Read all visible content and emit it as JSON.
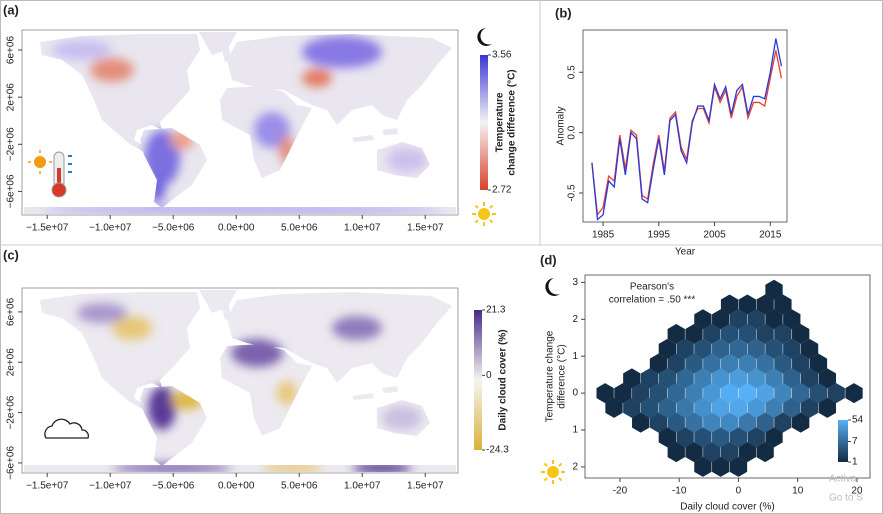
{
  "chart_data": [
    {
      "type": "map",
      "label": "(a)",
      "xlim": [
        -17000000,
        17600000
      ],
      "ylim": [
        -8000000,
        7700000
      ],
      "xticks": [
        {
          "value": -15000000,
          "label": "−1.5e+07"
        },
        {
          "value": -10000000,
          "label": "−1.0e+07"
        },
        {
          "value": -5000000,
          "label": "−5.0e+06"
        },
        {
          "value": 0,
          "label": "0.0e+00"
        },
        {
          "value": 5000000,
          "label": "5.0e+06"
        },
        {
          "value": 10000000,
          "label": "1.0e+07"
        },
        {
          "value": 15000000,
          "label": "1.5e+07"
        }
      ],
      "yticks": [
        {
          "value": 6000000,
          "label": "6e+06"
        },
        {
          "value": 2000000,
          "label": "2e+06"
        },
        {
          "value": -2000000,
          "label": "−2e+06"
        },
        {
          "value": -6000000,
          "label": "−6e+06"
        }
      ],
      "colorbar": {
        "title": [
          "Temperature",
          "change difference (°C)"
        ],
        "clim": [
          -2.72,
          3.56
        ],
        "ticks": [
          3.56,
          {
            "value": -2.72,
            "label": "2.72"
          }
        ],
        "colors": [
          "#d8402a",
          "#f5f3f5",
          "#3b36d6"
        ]
      }
    },
    {
      "type": "line",
      "label": "(b)",
      "xlabel": "Year",
      "ylabel": "Anomaly",
      "xlim": [
        1981.4,
        2018
      ],
      "ylim": [
        -0.74,
        0.85
      ],
      "xticks": [
        1985,
        1995,
        2005,
        2015
      ],
      "yticks": [
        -0.5,
        {
          "value": 0,
          "label": "0.0"
        },
        0.5
      ],
      "x": [
        1983,
        1984,
        1985,
        1986,
        1987,
        1988,
        1989,
        1990,
        1991,
        1992,
        1993,
        1994,
        1995,
        1996,
        1997,
        1998,
        1999,
        2000,
        2001,
        2002,
        2003,
        2004,
        2005,
        2006,
        2007,
        2008,
        2009,
        2010,
        2011,
        2012,
        2013,
        2014,
        2015,
        2016,
        2017
      ],
      "series": [
        {
          "color": "#e8402a",
          "values": [
            -0.25,
            -0.68,
            -0.62,
            -0.36,
            -0.4,
            -0.02,
            -0.3,
            0.02,
            -0.02,
            -0.52,
            -0.55,
            -0.26,
            -0.02,
            -0.32,
            0.12,
            0.17,
            -0.12,
            -0.22,
            0.1,
            0.2,
            0.2,
            0.08,
            0.38,
            0.25,
            0.35,
            0.12,
            0.3,
            0.38,
            0.12,
            0.25,
            0.25,
            0.22,
            0.45,
            0.68,
            0.45
          ]
        },
        {
          "color": "#2a3ad8",
          "values": [
            -0.25,
            -0.72,
            -0.68,
            -0.4,
            -0.45,
            -0.05,
            -0.35,
            0.0,
            -0.05,
            -0.55,
            -0.58,
            -0.3,
            -0.05,
            -0.35,
            0.1,
            0.15,
            -0.15,
            -0.25,
            0.08,
            0.22,
            0.22,
            0.1,
            0.4,
            0.28,
            0.38,
            0.15,
            0.35,
            0.4,
            0.15,
            0.3,
            0.3,
            0.28,
            0.5,
            0.78,
            0.55
          ]
        }
      ]
    },
    {
      "type": "map",
      "label": "(c)",
      "xlim": [
        -17000000,
        17600000
      ],
      "ylim": [
        -6800000,
        7900000
      ],
      "xticks": [
        {
          "value": -15000000,
          "label": "−1.5e+07"
        },
        {
          "value": -10000000,
          "label": "−1.0e+07"
        },
        {
          "value": -5000000,
          "label": "−5.0e+06"
        },
        {
          "value": 0,
          "label": "0.0e+00"
        },
        {
          "value": 5000000,
          "label": "5.0e+06"
        },
        {
          "value": 10000000,
          "label": "1.0e+07"
        },
        {
          "value": 15000000,
          "label": "1.5e+07"
        }
      ],
      "yticks": [
        {
          "value": 6000000,
          "label": "6e+06"
        },
        {
          "value": 2000000,
          "label": "2e+06"
        },
        {
          "value": -2000000,
          "label": "−2e+06"
        },
        {
          "value": -6000000,
          "label": "−6e+06"
        }
      ],
      "colorbar": {
        "title": [
          "Daily cloud cover (%)"
        ],
        "clim": [
          -24.3,
          21.3
        ],
        "ticks": [
          21.3,
          0,
          -24.3
        ],
        "colors": [
          "#d9b13b",
          "#f6f4f0",
          "#4a2a88"
        ]
      }
    },
    {
      "type": "hexbin",
      "label": "(d)",
      "xlabel": "Daily cloud cover (%)",
      "ylabel": [
        "Temperature change",
        "difference (°C)"
      ],
      "annotation": [
        "Pearson's",
        "correlation = .50 ***"
      ],
      "xlim": [
        -25.9,
        22.2
      ],
      "ylim": [
        -2.3,
        3.2
      ],
      "xticks": [
        -20,
        -10,
        0,
        10,
        20
      ],
      "yticks": [
        3,
        2,
        1,
        0,
        {
          "value": -1,
          "label": "1"
        },
        {
          "value": -2,
          "label": "2"
        }
      ],
      "x": [
        6,
        -1.5,
        1.5,
        4.5,
        7.5,
        -6,
        -3,
        0,
        3,
        6,
        9,
        -10.5,
        -7.5,
        -4.5,
        -1.5,
        1.5,
        4.5,
        7.5,
        10.5,
        -12,
        -9,
        -6,
        -3,
        0,
        3,
        6,
        9,
        12,
        -13.5,
        -10.5,
        -7.5,
        -4.5,
        -1.5,
        1.5,
        4.5,
        7.5,
        10.5,
        13.5,
        -18,
        -15,
        -12,
        -9,
        -6,
        -3,
        0,
        3,
        6,
        9,
        12,
        15,
        -22.5,
        -19.5,
        -16.5,
        -13.5,
        -10.5,
        -7.5,
        -4.5,
        -1.5,
        1.5,
        4.5,
        7.5,
        10.5,
        13.5,
        16.5,
        19.5,
        -21,
        -18,
        -15,
        -12,
        -9,
        -6,
        -3,
        0,
        3,
        6,
        9,
        12,
        15,
        -16.5,
        -13.5,
        -10.5,
        -7.5,
        -4.5,
        -1.5,
        1.5,
        4.5,
        7.5,
        10.5,
        -12,
        -9,
        -6,
        -3,
        0,
        3,
        6,
        -10.5,
        -7.5,
        -4.5,
        -1.5,
        1.5,
        4.5,
        -6,
        -3,
        0
      ],
      "y": [
        2.8,
        2.4,
        2.4,
        2.4,
        2.4,
        2,
        2,
        2,
        2,
        2,
        2,
        1.6,
        1.6,
        1.6,
        1.6,
        1.6,
        1.6,
        1.6,
        1.6,
        1.2,
        1.2,
        1.2,
        1.2,
        1.2,
        1.2,
        1.2,
        1.2,
        1.2,
        0.8,
        0.8,
        0.8,
        0.8,
        0.8,
        0.8,
        0.8,
        0.8,
        0.8,
        0.8,
        0.4,
        0.4,
        0.4,
        0.4,
        0.4,
        0.4,
        0.4,
        0.4,
        0.4,
        0.4,
        0.4,
        0.4,
        0,
        0,
        0,
        0,
        0,
        0,
        0,
        0,
        0,
        0,
        0,
        0,
        0,
        0,
        0,
        -0.4,
        -0.4,
        -0.4,
        -0.4,
        -0.4,
        -0.4,
        -0.4,
        -0.4,
        -0.4,
        -0.4,
        -0.4,
        -0.4,
        -0.4,
        -0.8,
        -0.8,
        -0.8,
        -0.8,
        -0.8,
        -0.8,
        -0.8,
        -0.8,
        -0.8,
        -0.8,
        -1.2,
        -1.2,
        -1.2,
        -1.2,
        -1.2,
        -1.2,
        -1.2,
        -1.6,
        -1.6,
        -1.6,
        -1.6,
        -1.6,
        -1.6,
        -2,
        -2,
        -2
      ],
      "values": [
        1,
        1,
        1,
        1,
        1,
        1,
        1,
        2,
        2,
        1,
        1,
        1,
        1,
        2,
        3,
        3,
        2,
        2,
        1,
        1,
        2,
        3,
        5,
        6,
        5,
        3,
        2,
        1,
        1,
        2,
        4,
        8,
        12,
        12,
        8,
        4,
        2,
        1,
        1,
        2,
        3,
        6,
        12,
        22,
        30,
        22,
        12,
        5,
        2,
        1,
        1,
        1,
        2,
        3,
        6,
        12,
        25,
        48,
        54,
        35,
        15,
        6,
        3,
        2,
        1,
        1,
        2,
        3,
        5,
        10,
        20,
        35,
        40,
        25,
        12,
        5,
        2,
        1,
        1,
        2,
        4,
        8,
        14,
        16,
        10,
        5,
        2,
        1,
        1,
        2,
        3,
        4,
        3,
        2,
        1,
        1,
        1,
        2,
        2,
        1,
        1,
        1,
        1,
        1
      ],
      "colorbar": {
        "log": true,
        "clim": [
          1,
          54
        ],
        "ticks": [
          54,
          7,
          1
        ],
        "colors": [
          "#132b43",
          "#56b1f7"
        ]
      }
    }
  ],
  "watermark": [
    "Activa",
    "Go to S"
  ]
}
